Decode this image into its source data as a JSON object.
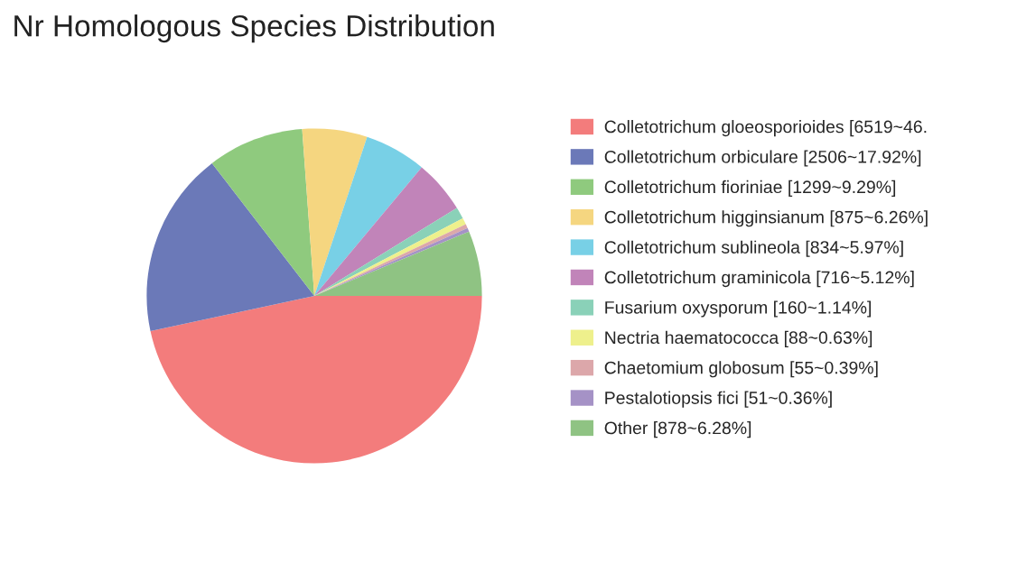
{
  "chart_data": {
    "type": "pie",
    "title": "Nr Homologous Species Distribution",
    "categories": [
      "Colletotrichum gloeosporioides [6519~46.",
      "Colletotrichum orbiculare [2506~17.92%]",
      "Colletotrichum fioriniae [1299~9.29%]",
      "Colletotrichum higginsianum [875~6.26%]",
      "Colletotrichum sublineola [834~5.97%]",
      "Colletotrichum graminicola [716~5.12%]",
      "Fusarium oxysporum [160~1.14%]",
      "Nectria haematococca [88~0.63%]",
      "Chaetomium globosum [55~0.39%]",
      "Pestalotiopsis fici [51~0.36%]",
      "Other [878~6.28%]"
    ],
    "values": [
      6519,
      2506,
      1299,
      875,
      834,
      716,
      160,
      88,
      55,
      51,
      878
    ],
    "colors": [
      "#f37c7c",
      "#6b79b8",
      "#8fca7e",
      "#f5d680",
      "#78d0e6",
      "#c184b9",
      "#8ad1b8",
      "#eef08c",
      "#dca7aa",
      "#a592c6",
      "#8fc383"
    ],
    "legend": "right"
  }
}
